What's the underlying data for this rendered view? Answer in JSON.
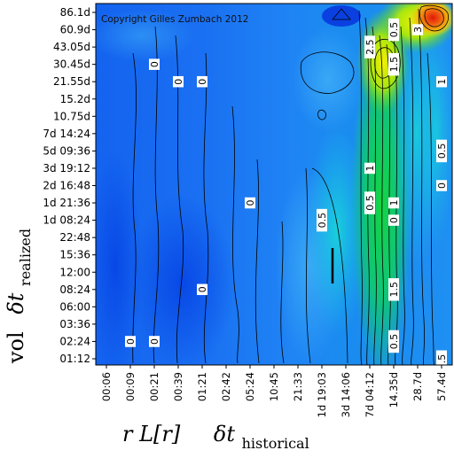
{
  "chart_data": {
    "type": "heatmap",
    "copyright": "Copyright Gilles Zumbach 2012",
    "y_ticks": [
      "86.1d",
      "60.9d",
      "43.05d",
      "30.45d",
      "21.55d",
      "15.2d",
      "10.75d",
      "7d 14:24",
      "5d 09:36",
      "3d 19:12",
      "2d 16:48",
      "1d 21:36",
      "1d 08:24",
      "22:48",
      "15:36",
      "12:00",
      "08:24",
      "06:00",
      "03:36",
      "02:24",
      "01:12"
    ],
    "x_ticks": [
      "00:06",
      "00:09",
      "00:21",
      "00:39",
      "01:21",
      "02:42",
      "05:24",
      "10:45",
      "21:33",
      "1d 19:03",
      "3d 14:06",
      "7d 04:12",
      "14.35d",
      "28.7d",
      "57.4d"
    ],
    "ylabel": {
      "main": "vol",
      "delta": "δt",
      "subscript": "realized"
    },
    "xlabel": {
      "main": "r L[r]",
      "delta": "δt",
      "subscript": "historical"
    },
    "contour_labels": [
      {
        "text": "0",
        "x": "00:21",
        "y": "30.45d"
      },
      {
        "text": "0",
        "x": "00:39",
        "y": "21.55d"
      },
      {
        "text": "0",
        "x": "01:21",
        "y": "21.55d"
      },
      {
        "text": "0",
        "x": "05:24",
        "y": "1d 21:36"
      },
      {
        "text": "0",
        "x": "01:21",
        "y": "08:24"
      },
      {
        "text": "0",
        "x": "00:09",
        "y": "02:24"
      },
      {
        "text": "0",
        "x": "00:21",
        "y": "02:24"
      },
      {
        "text": "0.5",
        "x": "1d 19:03",
        "y": "1d 08:24"
      },
      {
        "text": "0.5",
        "x": "7d 04:12",
        "y": "1d 21:36"
      },
      {
        "text": "1",
        "x": "7d 04:12",
        "y": "3d 19:12"
      },
      {
        "text": "1",
        "x": "14.35d",
        "y": "1d 21:36"
      },
      {
        "text": "0",
        "x": "14.35d",
        "y": "1d 08:24"
      },
      {
        "text": "1.5",
        "x": "14.35d",
        "y": "08:24"
      },
      {
        "text": "0.5",
        "x": "14.35d",
        "y": "02:24"
      },
      {
        "text": ".5",
        "x": "57.4d",
        "y": "01:12"
      },
      {
        "text": "2.5",
        "x": "7d 04:12",
        "y": "43.05d"
      },
      {
        "text": "1.5",
        "x": "14.35d",
        "y": "30.45d"
      },
      {
        "text": "0.5",
        "x": "14.35d",
        "y": "60.9d"
      },
      {
        "text": "3",
        "x": "28.7d",
        "y": "60.9d"
      },
      {
        "text": "1",
        "x": "57.4d",
        "y": "21.55d"
      },
      {
        "text": "0.5",
        "x": "57.4d",
        "y": "5d 09:36"
      },
      {
        "text": "0",
        "x": "57.4d",
        "y": "2d 16:48"
      }
    ]
  }
}
